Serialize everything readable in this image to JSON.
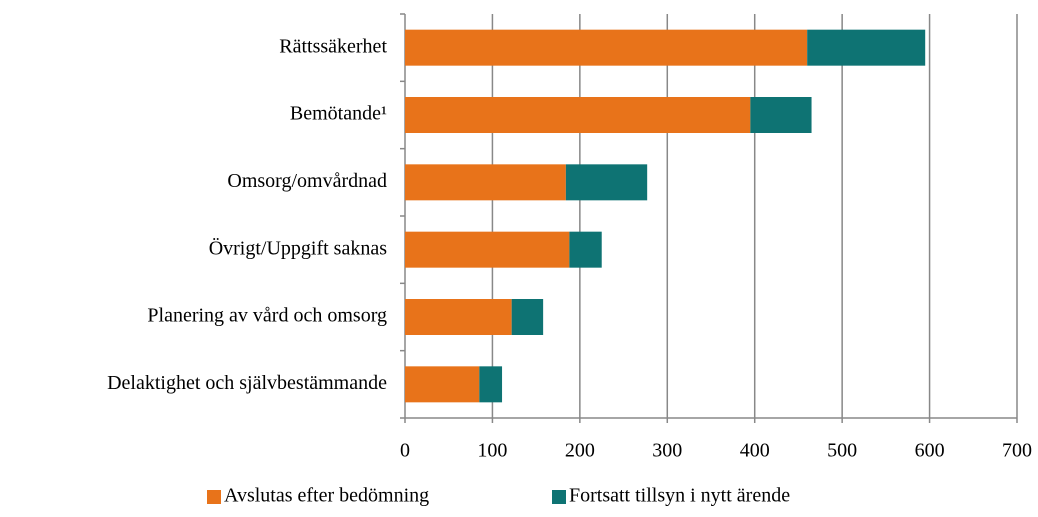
{
  "chart_data": {
    "type": "stacked_barh",
    "categories": [
      "Rättssäkerhet",
      "Bemötande¹",
      "Omsorg/omvårdnad",
      "Övrigt/Uppgift saknas",
      "Planering av vård och omsorg",
      "Delaktighet och självbestämmande"
    ],
    "series": [
      {
        "name": "Avslutas efter bedömning",
        "color": "#e8731a",
        "values": [
          460,
          395,
          184,
          188,
          122,
          85
        ]
      },
      {
        "name": "Fortsatt tillsyn i nytt ärende",
        "color": "#0e7373",
        "values": [
          135,
          70,
          93,
          37,
          36,
          26
        ]
      }
    ],
    "xlim": [
      0,
      700
    ],
    "xticks": [
      0,
      100,
      200,
      300,
      400,
      500,
      600,
      700
    ],
    "grid": true,
    "legend": "bottom"
  }
}
